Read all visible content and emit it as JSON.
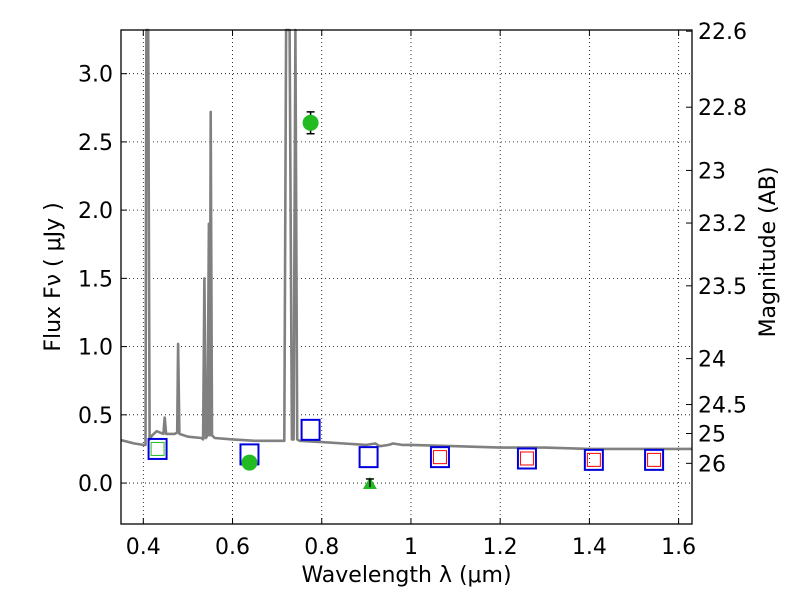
{
  "chart_data": {
    "type": "scatter",
    "xlabel": "Wavelength  λ (μm)",
    "ylabel": "Flux  Fν  ( μJy )",
    "y2label": "Magnitude (AB)",
    "xlim": [
      0.35,
      1.63
    ],
    "ylim": [
      -0.3,
      3.32
    ],
    "grid": true,
    "x_ticks": [
      0.4,
      0.6,
      0.8,
      1,
      1.2,
      1.4,
      1.6
    ],
    "x_tick_labels": [
      "0.4",
      "0.6",
      "0.8",
      "1",
      "1.2",
      "1.4",
      "1.6"
    ],
    "y_ticks": [
      0.0,
      0.5,
      1.0,
      1.5,
      2.0,
      2.5,
      3.0
    ],
    "y_tick_labels": [
      "0.0",
      "0.5",
      "1.0",
      "1.5",
      "2.0",
      "2.5",
      "3.0"
    ],
    "y2_ticks": [
      22.6,
      22.8,
      23,
      23.2,
      23.5,
      24,
      24.5,
      25,
      26
    ],
    "y2_tick_labels": [
      "22.6",
      "22.8",
      "23",
      "23.2",
      "23.5",
      "24",
      "24.5",
      "25",
      "26"
    ],
    "colors": {
      "template": "#808080",
      "model": "#0000dd",
      "observed": "#22bb22",
      "highlight": "#ff0000",
      "errorbar": "#000000",
      "grid": "#000000"
    },
    "series": [
      {
        "kind": "spectrum",
        "color": "#808080",
        "points": [
          [
            0.35,
            0.315
          ],
          [
            0.38,
            0.29
          ],
          [
            0.4,
            0.28
          ],
          [
            0.405,
            0.28
          ],
          [
            0.407,
            3.32
          ],
          [
            0.411,
            3.32
          ],
          [
            0.414,
            0.32
          ],
          [
            0.42,
            0.35
          ],
          [
            0.43,
            0.38
          ],
          [
            0.445,
            0.36
          ],
          [
            0.448,
            0.48
          ],
          [
            0.451,
            0.36
          ],
          [
            0.47,
            0.36
          ],
          [
            0.476,
            0.37
          ],
          [
            0.478,
            1.02
          ],
          [
            0.481,
            0.36
          ],
          [
            0.5,
            0.34
          ],
          [
            0.53,
            0.33
          ],
          [
            0.534,
            0.32
          ],
          [
            0.537,
            1.5
          ],
          [
            0.54,
            0.33
          ],
          [
            0.544,
            0.35
          ],
          [
            0.547,
            1.9
          ],
          [
            0.549,
            0.35
          ],
          [
            0.551,
            2.72
          ],
          [
            0.554,
            0.35
          ],
          [
            0.56,
            0.33
          ],
          [
            0.6,
            0.32
          ],
          [
            0.65,
            0.31
          ],
          [
            0.7,
            0.31
          ],
          [
            0.716,
            0.31
          ],
          [
            0.72,
            3.32
          ],
          [
            0.728,
            3.32
          ],
          [
            0.733,
            0.32
          ],
          [
            0.737,
            0.32
          ],
          [
            0.741,
            3.32
          ],
          [
            0.745,
            0.32
          ],
          [
            0.75,
            0.31
          ],
          [
            0.8,
            0.3
          ],
          [
            0.85,
            0.29
          ],
          [
            0.9,
            0.28
          ],
          [
            0.92,
            0.29
          ],
          [
            0.93,
            0.27
          ],
          [
            0.95,
            0.28
          ],
          [
            0.96,
            0.29
          ],
          [
            0.98,
            0.28
          ],
          [
            1.0,
            0.28
          ],
          [
            1.1,
            0.27
          ],
          [
            1.2,
            0.26
          ],
          [
            1.3,
            0.26
          ],
          [
            1.4,
            0.25
          ],
          [
            1.5,
            0.25
          ],
          [
            1.63,
            0.25
          ]
        ]
      },
      {
        "kind": "model-photometry",
        "marker": "open-square",
        "color": "#0000dd",
        "x": [
          0.432,
          0.638,
          0.775,
          0.905,
          1.065,
          1.26,
          1.41,
          1.545
        ],
        "y": [
          0.25,
          0.21,
          0.39,
          0.19,
          0.19,
          0.18,
          0.17,
          0.17
        ]
      },
      {
        "kind": "observed-squares",
        "marker": "open-square-small",
        "color": "#22bb22",
        "x": [
          0.432
        ],
        "y": [
          0.25
        ]
      },
      {
        "kind": "observed-squares",
        "marker": "open-square-small",
        "color": "#ff0000",
        "x": [
          1.065,
          1.26,
          1.41,
          1.545
        ],
        "y": [
          0.19,
          0.18,
          0.17,
          0.17
        ]
      },
      {
        "kind": "observed-photometry",
        "marker": "filled-circle",
        "color": "#22bb22",
        "x": [
          0.638,
          0.775
        ],
        "y": [
          0.15,
          2.64
        ],
        "yerr": [
          0.02,
          0.08
        ]
      },
      {
        "kind": "upper-limit",
        "marker": "filled-triangle",
        "color": "#22bb22",
        "x": [
          0.908
        ],
        "y": [
          0.0
        ],
        "yerr": [
          0.03
        ]
      }
    ]
  }
}
